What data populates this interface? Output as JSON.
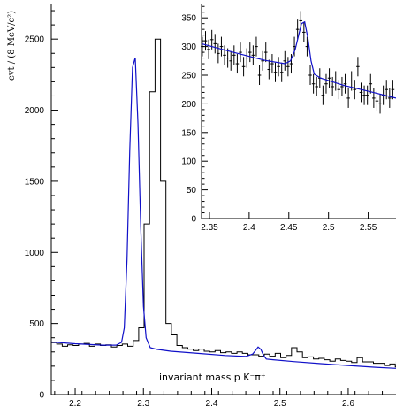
{
  "chart_data": [
    {
      "type": "histogram",
      "ylabel": "evt / (8 MeV/c²)",
      "annotation": "invariant mass p K⁻π⁺",
      "xlim": [
        2.165,
        2.67
      ],
      "ylim": [
        0,
        2750
      ],
      "x_ticks": [
        "2.2",
        "2.3",
        "2.4",
        "2.5",
        "2.6"
      ],
      "y_ticks": [
        "0",
        "500",
        "1000",
        "1500",
        "2000",
        "2500"
      ],
      "x_tick_values": [
        2.2,
        2.3,
        2.4,
        2.5,
        2.6
      ],
      "y_tick_values": [
        0,
        500,
        1000,
        1500,
        2000,
        2500
      ],
      "bin_width": 0.008,
      "bin_start": 2.165,
      "histogram_counts": [
        365,
        355,
        340,
        350,
        345,
        355,
        360,
        340,
        355,
        345,
        350,
        335,
        345,
        355,
        340,
        380,
        470,
        1200,
        2130,
        2500,
        1500,
        500,
        420,
        345,
        330,
        320,
        310,
        320,
        305,
        300,
        310,
        295,
        300,
        290,
        300,
        290,
        280,
        280,
        270,
        285,
        270,
        290,
        260,
        275,
        330,
        300,
        260,
        265,
        250,
        255,
        245,
        235,
        250,
        240,
        235,
        225,
        260,
        230,
        230,
        220,
        220,
        205,
        215,
        195,
        200,
        230,
        195,
        200,
        190,
        195,
        205,
        190,
        195,
        185,
        170,
        160
      ],
      "fit_x": [
        2.165,
        2.2,
        2.24,
        2.26,
        2.268,
        2.272,
        2.276,
        2.28,
        2.284,
        2.288,
        2.292,
        2.296,
        2.3,
        2.304,
        2.31,
        2.32,
        2.34,
        2.38,
        2.42,
        2.45,
        2.46,
        2.465,
        2.468,
        2.472,
        2.476,
        2.48,
        2.49,
        2.52,
        2.56,
        2.6,
        2.64,
        2.67
      ],
      "fit_y": [
        370,
        358,
        348,
        348,
        368,
        470,
        950,
        1720,
        2300,
        2370,
        1900,
        1180,
        620,
        400,
        330,
        318,
        305,
        290,
        275,
        268,
        285,
        315,
        335,
        318,
        275,
        250,
        245,
        232,
        218,
        205,
        192,
        185
      ]
    },
    {
      "type": "scatter",
      "subtype": "errorbar-inset",
      "xlim": [
        2.34,
        2.585
      ],
      "ylim": [
        0,
        375
      ],
      "x_ticks": [
        "2.35",
        "2.4",
        "2.45",
        "2.5",
        "2.55"
      ],
      "y_ticks": [
        "0",
        "50",
        "100",
        "150",
        "200",
        "250",
        "300",
        "350"
      ],
      "x_tick_values": [
        2.35,
        2.4,
        2.45,
        2.5,
        2.55
      ],
      "y_tick_values": [
        0,
        50,
        100,
        150,
        200,
        250,
        300,
        350
      ],
      "x": [
        2.341,
        2.345,
        2.349,
        2.353,
        2.357,
        2.361,
        2.365,
        2.369,
        2.373,
        2.377,
        2.381,
        2.385,
        2.389,
        2.393,
        2.397,
        2.401,
        2.405,
        2.409,
        2.413,
        2.417,
        2.421,
        2.425,
        2.429,
        2.433,
        2.437,
        2.441,
        2.445,
        2.449,
        2.453,
        2.457,
        2.461,
        2.465,
        2.469,
        2.473,
        2.477,
        2.481,
        2.485,
        2.489,
        2.493,
        2.497,
        2.501,
        2.505,
        2.509,
        2.513,
        2.517,
        2.521,
        2.525,
        2.529,
        2.533,
        2.537,
        2.541,
        2.545,
        2.549,
        2.553,
        2.557,
        2.561,
        2.565,
        2.569,
        2.573,
        2.577,
        2.581
      ],
      "y": [
        300,
        310,
        295,
        312,
        305,
        288,
        300,
        285,
        280,
        275,
        285,
        270,
        290,
        265,
        280,
        290,
        285,
        300,
        250,
        275,
        290,
        260,
        270,
        255,
        265,
        255,
        275,
        265,
        270,
        300,
        330,
        345,
        325,
        300,
        250,
        235,
        230,
        245,
        215,
        235,
        245,
        230,
        240,
        225,
        230,
        235,
        210,
        240,
        225,
        265,
        220,
        215,
        215,
        235,
        210,
        205,
        200,
        215,
        225,
        210,
        225
      ],
      "yerr": 17,
      "fit_x": [
        2.34,
        2.38,
        2.42,
        2.445,
        2.452,
        2.458,
        2.462,
        2.466,
        2.47,
        2.474,
        2.478,
        2.482,
        2.49,
        2.52,
        2.55,
        2.585
      ],
      "fit_y": [
        305,
        290,
        276,
        270,
        275,
        295,
        318,
        340,
        343,
        315,
        275,
        252,
        245,
        232,
        222,
        210
      ]
    }
  ]
}
